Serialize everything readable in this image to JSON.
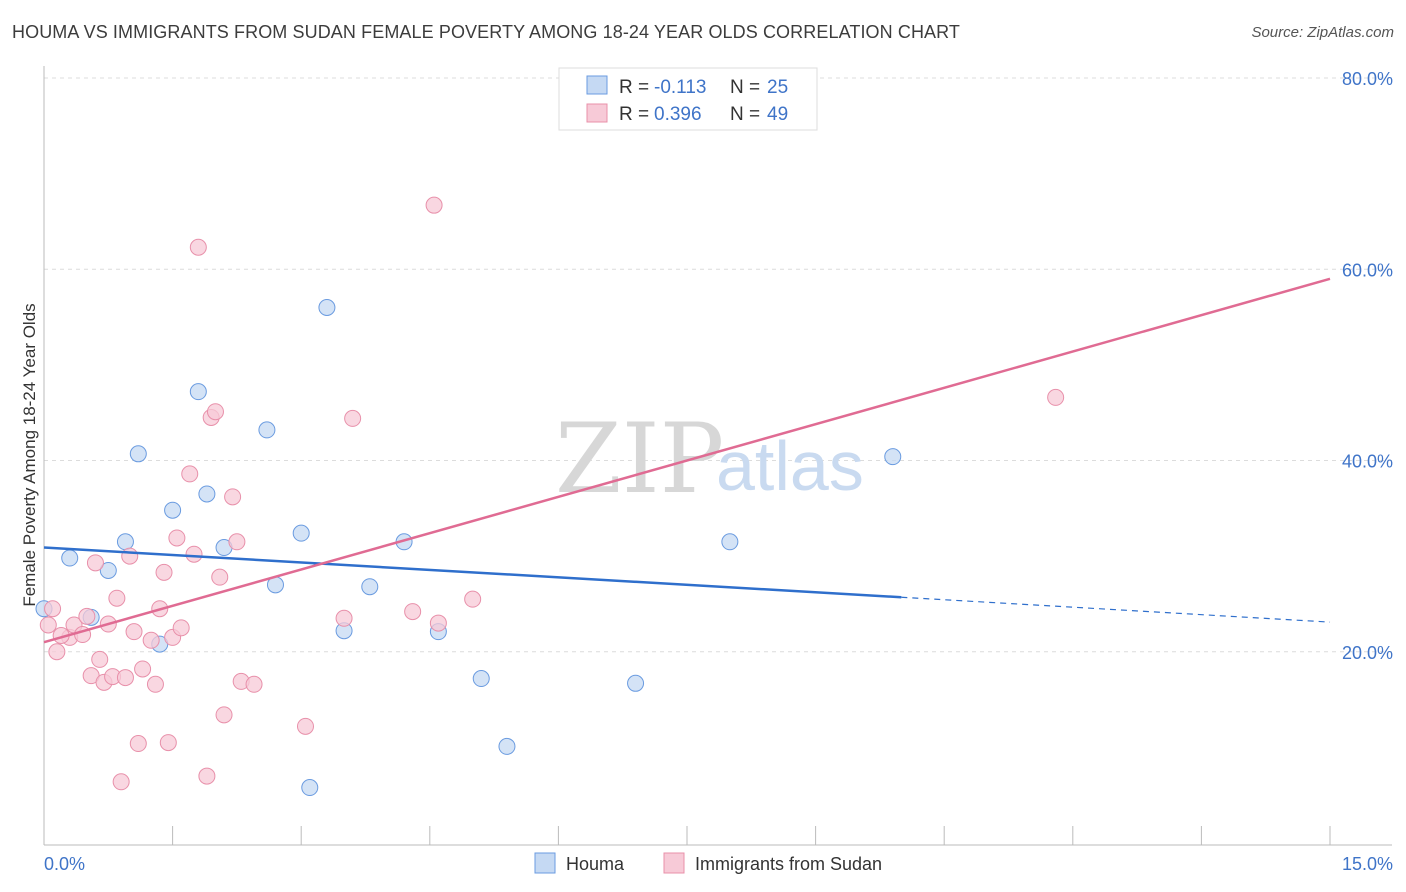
{
  "header": {
    "title": "HOUMA VS IMMIGRANTS FROM SUDAN FEMALE POVERTY AMONG 18-24 YEAR OLDS CORRELATION CHART",
    "source": "Source: ZipAtlas.com"
  },
  "watermark": {
    "zip": "ZIP",
    "atlas": "atlas"
  },
  "chart_data": {
    "type": "scatter",
    "ylabel": "Female Poverty Among 18-24 Year Olds",
    "xlim": [
      0,
      15
    ],
    "ylim": [
      0,
      80
    ],
    "x_tick_labels": [
      {
        "value": 0,
        "label": "0.0%"
      },
      {
        "value": 15,
        "label": "15.0%"
      }
    ],
    "y_ticks": [
      {
        "value": 20,
        "label": "20.0%"
      },
      {
        "value": 40,
        "label": "40.0%"
      },
      {
        "value": 60,
        "label": "60.0%"
      },
      {
        "value": 80,
        "label": "80.0%"
      }
    ],
    "grid": "horizontal dashed",
    "legend_position": "top-center",
    "stats_legend": [
      {
        "r_label": "R =",
        "r_value": "-0.113",
        "n_label": "N =",
        "n_value": "25"
      },
      {
        "r_label": "R =",
        "r_value": "0.396",
        "n_label": "N =",
        "n_value": "49"
      }
    ],
    "series": [
      {
        "name": "Houma",
        "color": "#6a9be0",
        "fill": "#c5d9f3",
        "trend": {
          "x0": 0,
          "y0": 30.9,
          "x1": 10.0,
          "y1": 25.7,
          "dashed_to_x": 15,
          "dashed_to_y": 23.1,
          "color": "#2f6fcc"
        },
        "points": [
          [
            0.0,
            24.5
          ],
          [
            0.3,
            29.8
          ],
          [
            0.55,
            23.6
          ],
          [
            0.75,
            28.5
          ],
          [
            0.95,
            31.5
          ],
          [
            1.1,
            40.7
          ],
          [
            1.5,
            34.8
          ],
          [
            1.8,
            47.2
          ],
          [
            1.9,
            36.5
          ],
          [
            2.1,
            30.9
          ],
          [
            2.6,
            43.2
          ],
          [
            2.7,
            27.0
          ],
          [
            3.0,
            32.4
          ],
          [
            3.3,
            56.0
          ],
          [
            3.5,
            22.2
          ],
          [
            3.8,
            26.8
          ],
          [
            4.2,
            31.5
          ],
          [
            4.6,
            22.1
          ],
          [
            5.1,
            17.2
          ],
          [
            5.4,
            10.1
          ],
          [
            6.9,
            16.7
          ],
          [
            8.0,
            31.5
          ],
          [
            9.9,
            40.4
          ],
          [
            3.1,
            5.8
          ],
          [
            1.35,
            20.8
          ]
        ]
      },
      {
        "name": "Immigrants from Sudan",
        "color": "#e890aa",
        "fill": "#f7cad7",
        "trend": {
          "x0": 0,
          "y0": 21.0,
          "x1": 15,
          "y1": 59.0,
          "color": "#e06b93"
        },
        "points": [
          [
            0.05,
            22.8
          ],
          [
            0.1,
            24.5
          ],
          [
            0.15,
            20.0
          ],
          [
            0.3,
            21.5
          ],
          [
            0.35,
            22.8
          ],
          [
            0.45,
            21.8
          ],
          [
            0.5,
            23.7
          ],
          [
            0.55,
            17.5
          ],
          [
            0.6,
            29.3
          ],
          [
            0.65,
            19.2
          ],
          [
            0.7,
            16.8
          ],
          [
            0.75,
            22.9
          ],
          [
            0.8,
            17.4
          ],
          [
            0.85,
            25.6
          ],
          [
            0.9,
            6.4
          ],
          [
            0.95,
            17.3
          ],
          [
            1.0,
            30.0
          ],
          [
            1.05,
            22.1
          ],
          [
            1.1,
            10.4
          ],
          [
            1.15,
            18.2
          ],
          [
            1.25,
            21.2
          ],
          [
            1.3,
            16.6
          ],
          [
            1.35,
            24.5
          ],
          [
            1.4,
            28.3
          ],
          [
            1.45,
            10.5
          ],
          [
            1.5,
            21.5
          ],
          [
            1.55,
            31.9
          ],
          [
            1.6,
            22.5
          ],
          [
            1.7,
            38.6
          ],
          [
            1.75,
            30.2
          ],
          [
            1.8,
            62.3
          ],
          [
            1.9,
            7.0
          ],
          [
            1.95,
            44.5
          ],
          [
            2.0,
            45.1
          ],
          [
            2.05,
            27.8
          ],
          [
            2.1,
            13.4
          ],
          [
            2.2,
            36.2
          ],
          [
            2.25,
            31.5
          ],
          [
            2.3,
            16.9
          ],
          [
            2.45,
            16.6
          ],
          [
            3.05,
            12.2
          ],
          [
            3.5,
            23.5
          ],
          [
            3.6,
            44.4
          ],
          [
            4.3,
            24.2
          ],
          [
            4.6,
            23.0
          ],
          [
            4.55,
            66.7
          ],
          [
            5.0,
            25.5
          ],
          [
            11.8,
            46.6
          ],
          [
            0.2,
            21.7
          ]
        ]
      }
    ]
  },
  "bottom_legend": [
    {
      "label": "Houma"
    },
    {
      "label": "Immigrants from Sudan"
    }
  ]
}
